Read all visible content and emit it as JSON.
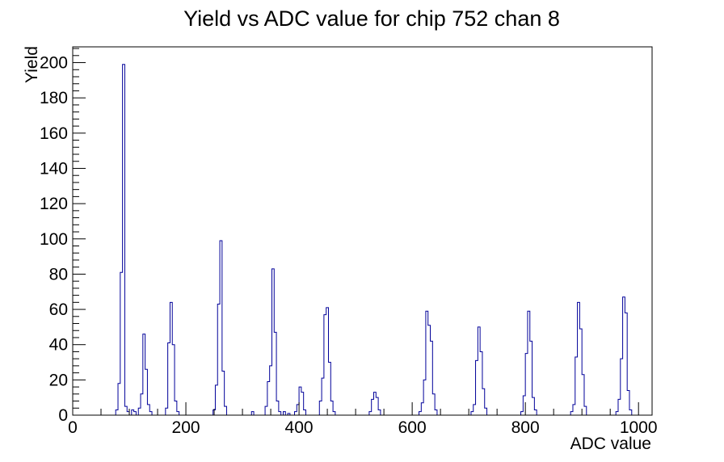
{
  "chart_data": {
    "type": "bar",
    "style": "root-step-histogram",
    "title": "Yield vs ADC value for chip 752 chan 8",
    "xlabel": "ADC value",
    "ylabel": "Yield",
    "xlim": [
      0,
      1024
    ],
    "ylim": [
      0,
      208.95
    ],
    "x_major_ticks": [
      0,
      200,
      400,
      600,
      800,
      1000
    ],
    "x_minor_step": 50,
    "y_major_ticks": [
      0,
      20,
      40,
      60,
      80,
      100,
      120,
      140,
      160,
      180,
      200
    ],
    "y_minor_step": 4,
    "bin_width": 4,
    "line_color": "#000099",
    "frame_color": "#000000",
    "background_color": "#ffffff",
    "grid": "off",
    "legend": "none",
    "bins": [
      [
        76,
        3
      ],
      [
        80,
        18
      ],
      [
        84,
        81
      ],
      [
        88,
        199
      ],
      [
        92,
        5
      ],
      [
        96,
        2
      ],
      [
        104,
        3
      ],
      [
        108,
        2
      ],
      [
        116,
        4
      ],
      [
        120,
        12
      ],
      [
        124,
        46
      ],
      [
        128,
        26
      ],
      [
        132,
        6
      ],
      [
        136,
        2
      ],
      [
        164,
        4
      ],
      [
        168,
        41
      ],
      [
        172,
        64
      ],
      [
        176,
        40
      ],
      [
        180,
        8
      ],
      [
        184,
        2
      ],
      [
        248,
        3
      ],
      [
        252,
        17
      ],
      [
        256,
        63
      ],
      [
        260,
        99
      ],
      [
        264,
        25
      ],
      [
        268,
        5
      ],
      [
        316,
        2
      ],
      [
        340,
        5
      ],
      [
        344,
        19
      ],
      [
        348,
        28
      ],
      [
        352,
        83
      ],
      [
        356,
        47
      ],
      [
        360,
        8
      ],
      [
        364,
        2
      ],
      [
        372,
        2
      ],
      [
        380,
        1
      ],
      [
        392,
        2
      ],
      [
        396,
        6
      ],
      [
        400,
        16
      ],
      [
        404,
        13
      ],
      [
        408,
        3
      ],
      [
        436,
        8
      ],
      [
        440,
        21
      ],
      [
        444,
        57
      ],
      [
        448,
        61
      ],
      [
        452,
        30
      ],
      [
        456,
        8
      ],
      [
        460,
        2
      ],
      [
        524,
        2
      ],
      [
        528,
        9
      ],
      [
        532,
        13
      ],
      [
        536,
        10
      ],
      [
        540,
        3
      ],
      [
        612,
        2
      ],
      [
        616,
        7
      ],
      [
        620,
        20
      ],
      [
        624,
        59
      ],
      [
        628,
        51
      ],
      [
        632,
        42
      ],
      [
        636,
        12
      ],
      [
        640,
        3
      ],
      [
        704,
        2
      ],
      [
        708,
        6
      ],
      [
        712,
        31
      ],
      [
        716,
        50
      ],
      [
        720,
        36
      ],
      [
        724,
        15
      ],
      [
        728,
        4
      ],
      [
        792,
        2
      ],
      [
        796,
        11
      ],
      [
        800,
        35
      ],
      [
        804,
        59
      ],
      [
        808,
        42
      ],
      [
        812,
        10
      ],
      [
        816,
        3
      ],
      [
        880,
        2
      ],
      [
        884,
        6
      ],
      [
        888,
        33
      ],
      [
        892,
        64
      ],
      [
        896,
        49
      ],
      [
        900,
        23
      ],
      [
        904,
        5
      ],
      [
        960,
        2
      ],
      [
        964,
        9
      ],
      [
        968,
        32
      ],
      [
        972,
        67
      ],
      [
        976,
        58
      ],
      [
        980,
        14
      ],
      [
        984,
        3
      ]
    ]
  }
}
